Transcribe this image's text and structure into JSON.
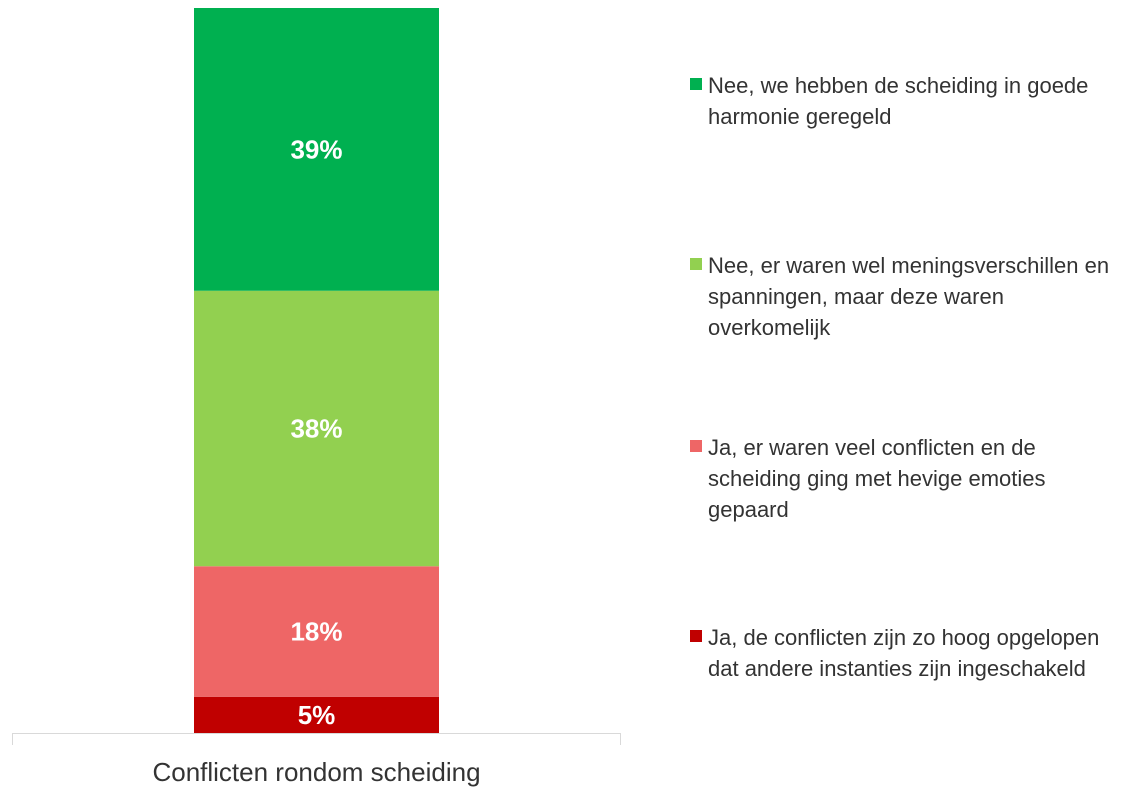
{
  "chart_data": {
    "type": "stacked_bar",
    "categories": [
      "Conflicten rondom scheiding"
    ],
    "ylim": [
      0,
      100
    ],
    "series": [
      {
        "name": "Nee, we hebben de scheiding in goede harmonie geregeld",
        "color": "#00b050",
        "values": [
          39
        ],
        "value_labels": [
          "39%"
        ]
      },
      {
        "name": "Nee, er waren wel meningsverschillen en spanningen, maar deze waren overkomelijk",
        "color": "#92d050",
        "values": [
          38
        ],
        "value_labels": [
          "38%"
        ]
      },
      {
        "name": "Ja, er waren veel conflicten en de scheiding ging met hevige emoties gepaard",
        "color": "#ee6666",
        "values": [
          18
        ],
        "value_labels": [
          "18%"
        ]
      },
      {
        "name": "Ja, de conflicten zijn zo hoog opgelopen dat andere instanties zijn ingeschakeld",
        "color": "#c00000",
        "values": [
          5
        ],
        "value_labels": [
          "5%"
        ]
      }
    ]
  }
}
